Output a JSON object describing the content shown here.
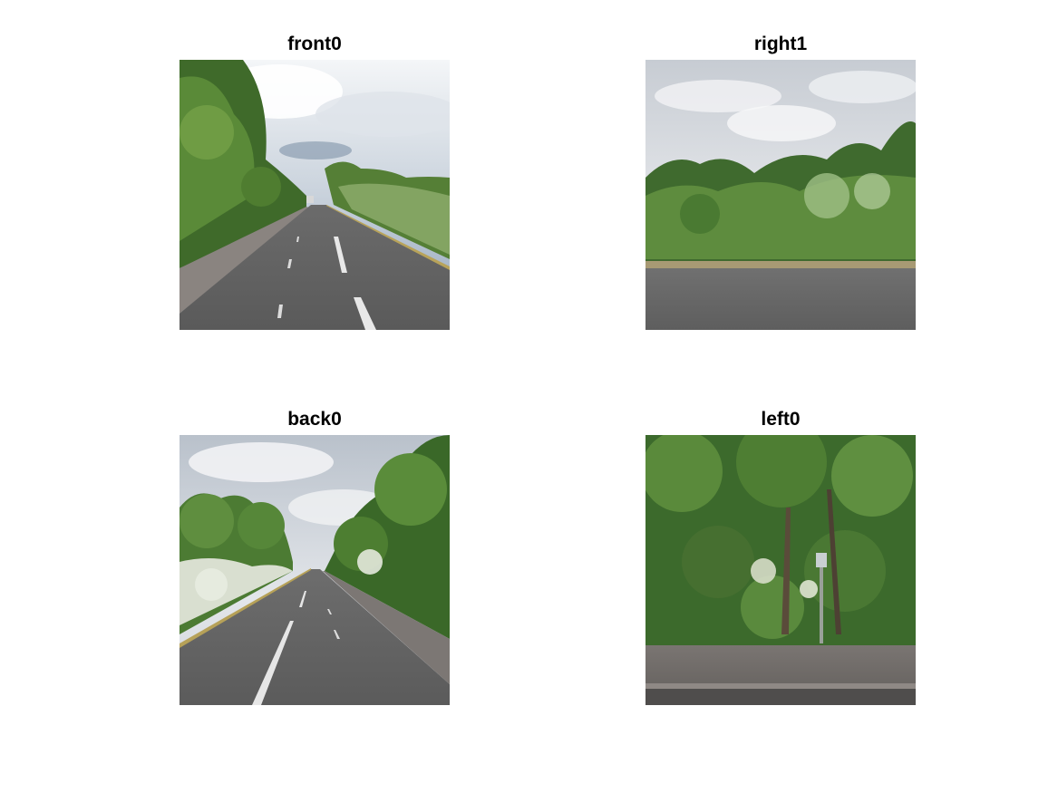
{
  "panels": [
    {
      "title": "front0"
    },
    {
      "title": "right1"
    },
    {
      "title": "back0"
    },
    {
      "title": "left0"
    }
  ]
}
